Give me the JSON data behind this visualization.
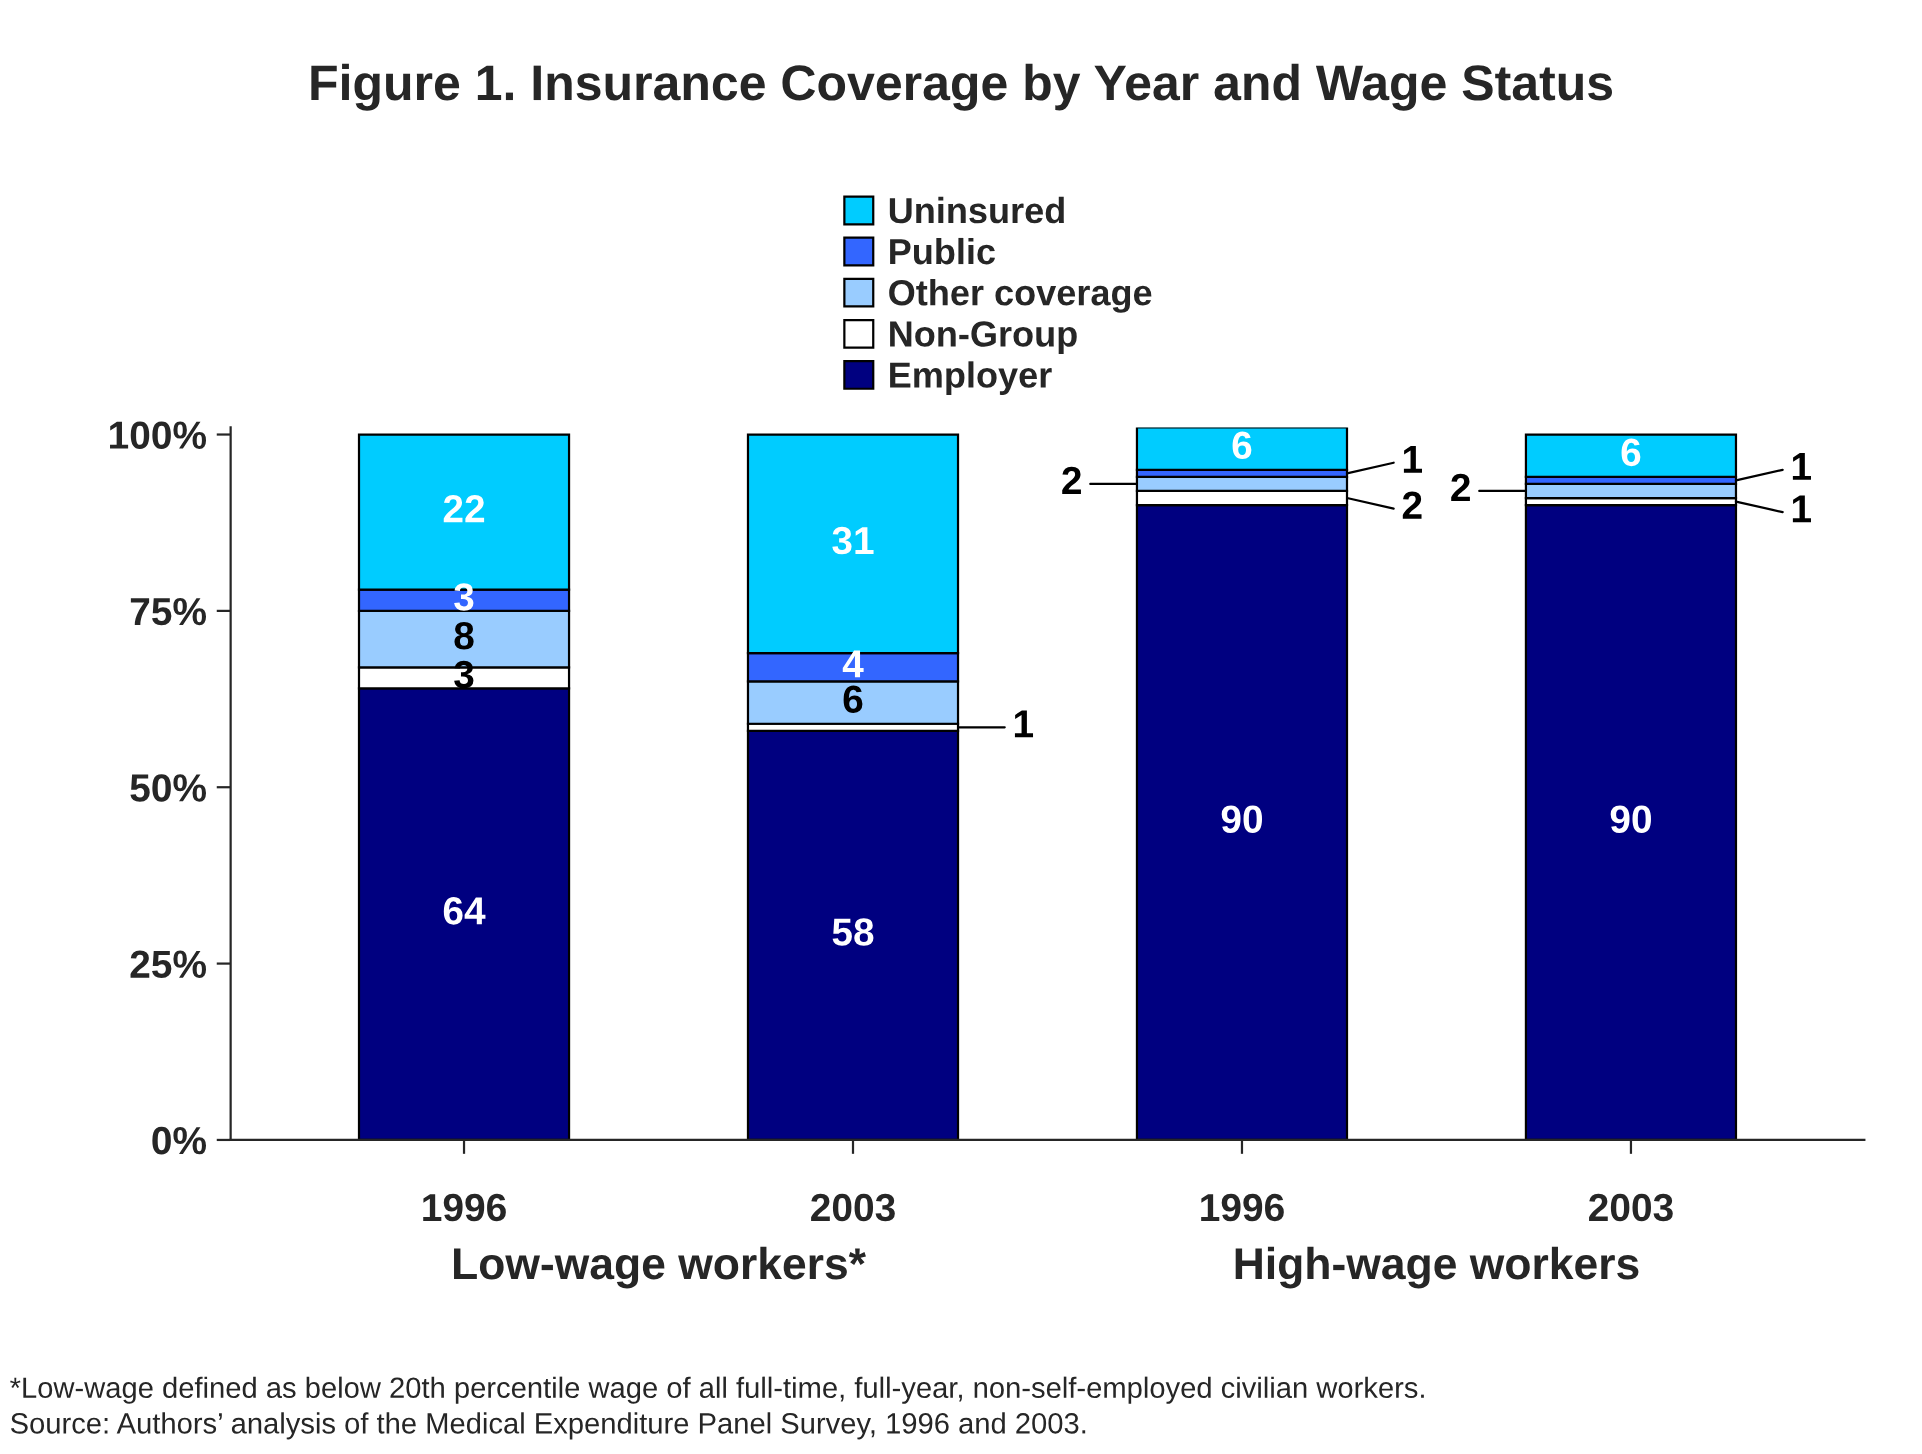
{
  "chart_data": {
    "type": "bar",
    "title": "Figure 1. Insurance Coverage by Year and Wage Status",
    "categories": [
      "1996",
      "2003",
      "1996",
      "2003"
    ],
    "stacked": true,
    "data_labels": true,
    "legend": "top",
    "grid": false,
    "ylim": [
      0,
      101
    ],
    "yticks": [
      {
        "value": 0,
        "label": "0%"
      },
      {
        "value": 25,
        "label": "25%"
      },
      {
        "value": 50,
        "label": "50%"
      },
      {
        "value": 75,
        "label": "75%"
      },
      {
        "value": 100,
        "label": "100%"
      }
    ],
    "series": [
      {
        "name": "Employer",
        "color": "#000080",
        "values": [
          64,
          58,
          90,
          90
        ]
      },
      {
        "name": "Non-Group",
        "color": "#ffffff",
        "values": [
          3,
          1,
          2,
          1
        ]
      },
      {
        "name": "Other coverage",
        "color": "#99ccff",
        "values": [
          8,
          6,
          2,
          2
        ]
      },
      {
        "name": "Public",
        "color": "#3366ff",
        "values": [
          3,
          4,
          1,
          1
        ]
      },
      {
        "name": "Uninsured",
        "color": "#00ccff",
        "values": [
          22,
          31,
          6,
          6
        ]
      }
    ],
    "annotations": [
      "Low-wage workers*",
      "High-wage workers",
      "*Low-wage defined as below 20th percentile wage of all full-time, full-year, non-self-employed civilian workers.\nSource: Authors’ analysis of the Medical Expenditure Panel Survey, 1996 and 2003."
    ]
  }
}
